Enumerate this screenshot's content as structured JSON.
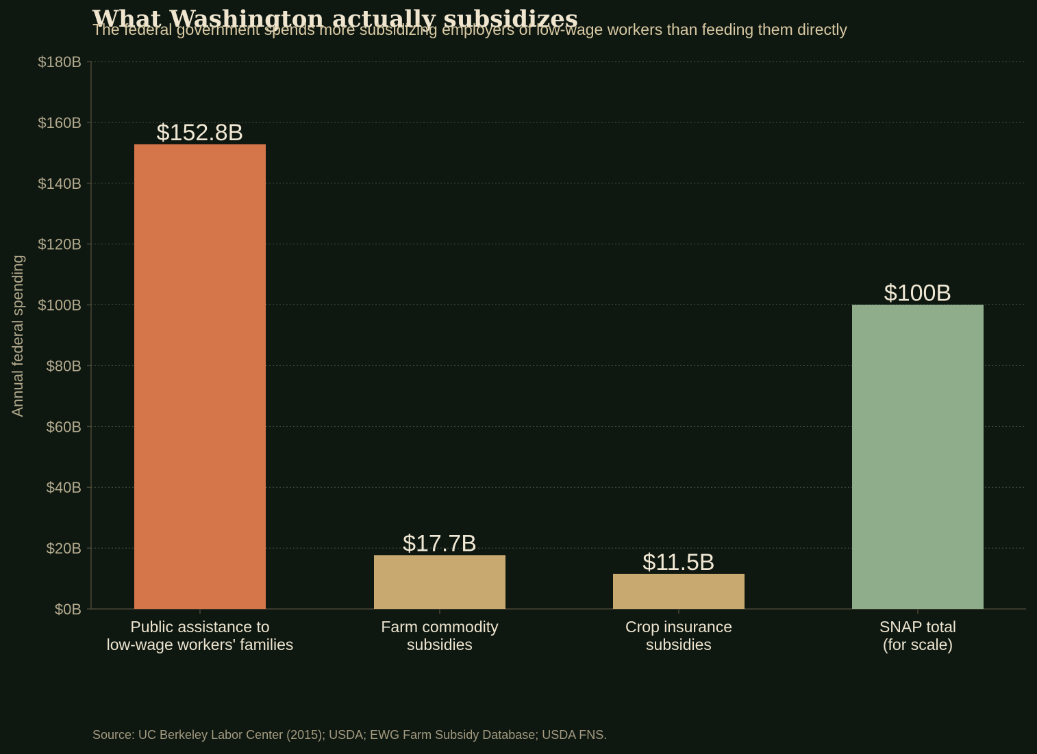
{
  "chart_data": {
    "type": "bar",
    "title": "What Washington actually subsidizes",
    "subtitle": "The federal government spends more subsidizing employers of low-wage workers than feeding them directly",
    "ylabel": "Annual federal spending",
    "xlabel": "",
    "ylim": [
      0,
      180
    ],
    "y_ticks": [
      0,
      20,
      40,
      60,
      80,
      100,
      120,
      140,
      160,
      180
    ],
    "y_tick_labels": [
      "$0B",
      "$20B",
      "$40B",
      "$60B",
      "$80B",
      "$100B",
      "$120B",
      "$140B",
      "$160B",
      "$180B"
    ],
    "grid": true,
    "categories": [
      [
        "Public assistance to",
        "low-wage workers' families"
      ],
      [
        "Farm commodity",
        "subsidies"
      ],
      [
        "Crop insurance",
        "subsidies"
      ],
      [
        "SNAP total",
        "(for scale)"
      ]
    ],
    "values": [
      152.8,
      17.7,
      11.5,
      100
    ],
    "value_labels": [
      "$152.8B",
      "$17.7B",
      "$11.5B",
      "$100B"
    ],
    "bar_colors": [
      "#d4764a",
      "#c8aa70",
      "#c8aa70",
      "#8fad8b"
    ]
  },
  "source": "Source: UC Berkeley Labor Center (2015); USDA; EWG Farm Subsidy Database; USDA FNS.",
  "colors": {
    "background": "#0e1710",
    "grid": "#4a5446",
    "axis": "#4a4636",
    "tick_text": "#b3aa8e",
    "category_text": "#ece4cf",
    "value_text": "#f0e8d4"
  }
}
